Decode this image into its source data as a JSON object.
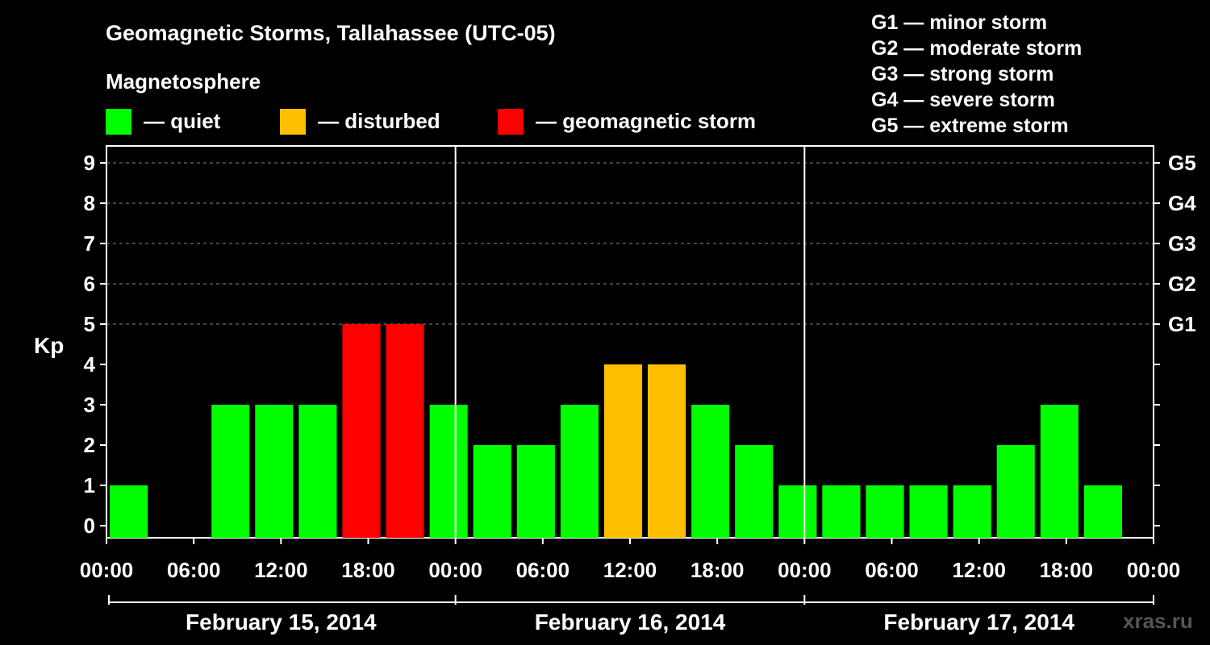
{
  "header": {
    "title": "Geomagnetic Storms, Tallahassee (UTC-05)",
    "subtitle": "Magnetosphere"
  },
  "legend": {
    "quiet": {
      "label": "— quiet",
      "color": "#00ff00"
    },
    "disturbed": {
      "label": "— disturbed",
      "color": "#ffbf00"
    },
    "storm": {
      "label": "— geomagnetic storm",
      "color": "#ff0000"
    }
  },
  "scale_legend": [
    "G1 — minor storm",
    "G2 — moderate storm",
    "G3 — strong storm",
    "G4 — severe storm",
    "G5 — extreme storm"
  ],
  "watermark": "xras.ru",
  "chart_data": {
    "type": "bar",
    "ylabel": "Kp",
    "ylim": [
      0,
      9
    ],
    "yticks": [
      "0",
      "1",
      "2",
      "3",
      "4",
      "5",
      "6",
      "7",
      "8",
      "9"
    ],
    "right_ticks": [
      "G1",
      "G2",
      "G3",
      "G4",
      "G5"
    ],
    "xtick_labels": [
      "00:00",
      "06:00",
      "12:00",
      "18:00",
      "00:00",
      "06:00",
      "12:00",
      "18:00",
      "00:00",
      "06:00",
      "12:00",
      "18:00",
      "00:00"
    ],
    "days": [
      "February 15, 2014",
      "February 16, 2014",
      "February 17, 2014"
    ],
    "grid": true,
    "bars": [
      {
        "start_hour": 0,
        "kp": 1,
        "level": "quiet"
      },
      {
        "start_hour": 7,
        "kp": 3,
        "level": "quiet"
      },
      {
        "start_hour": 10,
        "kp": 3,
        "level": "quiet"
      },
      {
        "start_hour": 13,
        "kp": 3,
        "level": "quiet"
      },
      {
        "start_hour": 16,
        "kp": 5,
        "level": "storm"
      },
      {
        "start_hour": 19,
        "kp": 5,
        "level": "storm"
      },
      {
        "start_hour": 22,
        "kp": 3,
        "level": "quiet"
      },
      {
        "start_hour": 25,
        "kp": 2,
        "level": "quiet"
      },
      {
        "start_hour": 28,
        "kp": 2,
        "level": "quiet"
      },
      {
        "start_hour": 31,
        "kp": 3,
        "level": "quiet"
      },
      {
        "start_hour": 34,
        "kp": 4,
        "level": "disturbed"
      },
      {
        "start_hour": 37,
        "kp": 4,
        "level": "disturbed"
      },
      {
        "start_hour": 40,
        "kp": 3,
        "level": "quiet"
      },
      {
        "start_hour": 43,
        "kp": 2,
        "level": "quiet"
      },
      {
        "start_hour": 46,
        "kp": 1,
        "level": "quiet"
      },
      {
        "start_hour": 49,
        "kp": 1,
        "level": "quiet"
      },
      {
        "start_hour": 52,
        "kp": 1,
        "level": "quiet"
      },
      {
        "start_hour": 55,
        "kp": 1,
        "level": "quiet"
      },
      {
        "start_hour": 58,
        "kp": 1,
        "level": "quiet"
      },
      {
        "start_hour": 61,
        "kp": 2,
        "level": "quiet"
      },
      {
        "start_hour": 64,
        "kp": 3,
        "level": "quiet"
      },
      {
        "start_hour": 67,
        "kp": 1,
        "level": "quiet"
      }
    ]
  }
}
